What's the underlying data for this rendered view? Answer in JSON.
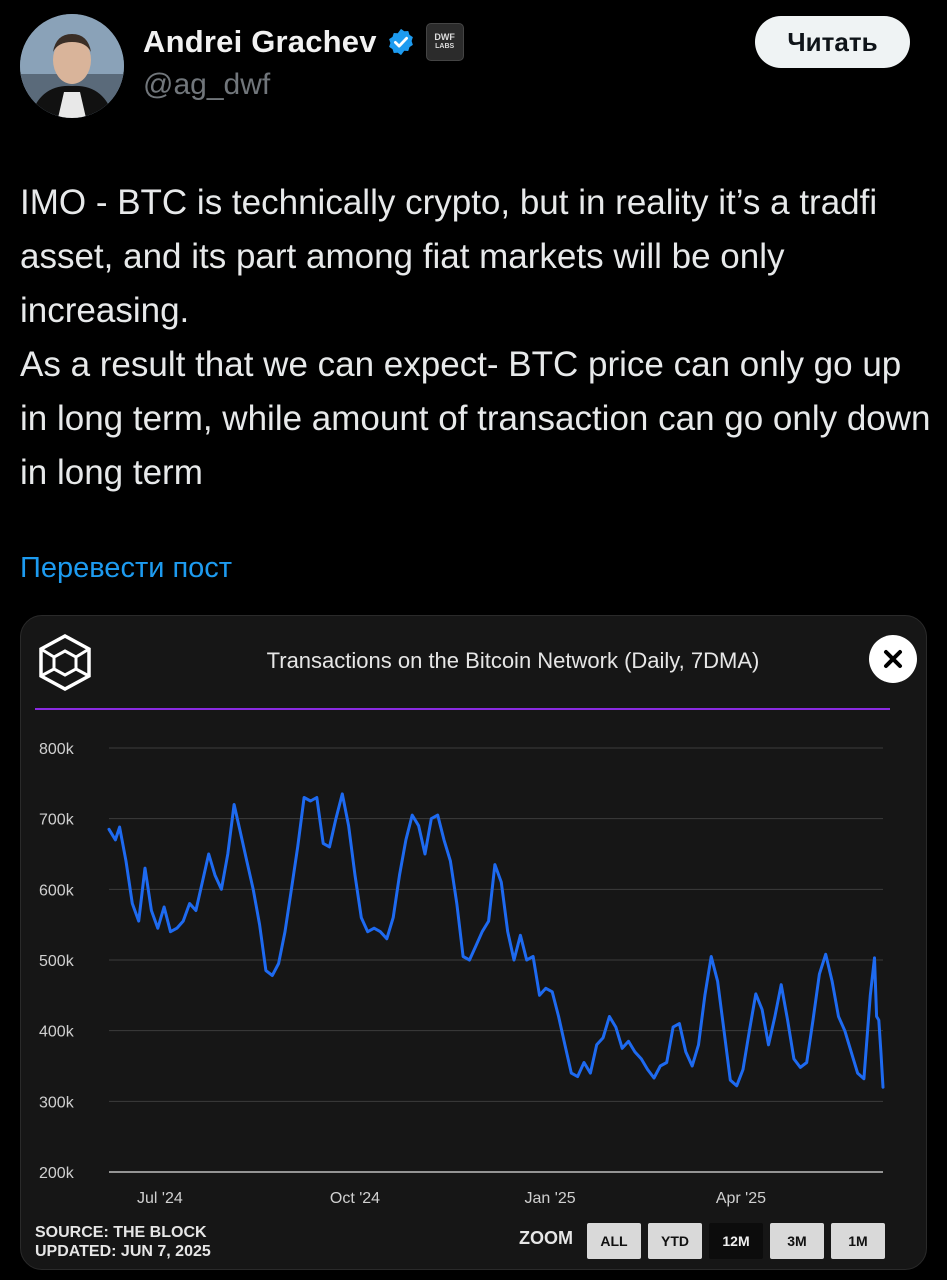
{
  "author": {
    "name": "Andrei Grachev",
    "handle": "@ag_dwf",
    "badge_line1": "DWF",
    "badge_line2": "LABS",
    "verified_icon": "verified-badge-icon"
  },
  "actions": {
    "read_label": "Читать",
    "translate_label": "Перевести пост"
  },
  "tweet": {
    "paragraph1": "IMO - BTC is technically crypto, but in reality it’s a tradfi asset, and its part among fiat markets will be only increasing.",
    "paragraph2": "As a result that we can expect- BTC price can only go up in long term, while amount of transaction can go only down in long term"
  },
  "chart_card": {
    "source_line1": "SOURCE: THE BLOCK",
    "source_line2": "UPDATED: JUN 7, 2025",
    "zoom_label": "ZOOM",
    "zoom_options": [
      "ALL",
      "YTD",
      "12M",
      "3M",
      "1M"
    ],
    "zoom_active": "12M",
    "colors": {
      "line": "#1e6af0",
      "divider": "#8a2be2",
      "background": "#161616"
    }
  },
  "chart_data": {
    "type": "line",
    "title": "Transactions on the Bitcoin Network (Daily, 7DMA)",
    "xlabel": "",
    "ylabel": "",
    "ylim": [
      200000,
      800000
    ],
    "yticks": [
      200000,
      300000,
      400000,
      500000,
      600000,
      700000,
      800000
    ],
    "ytick_labels": [
      "200k",
      "300k",
      "400k",
      "500k",
      "600k",
      "700k",
      "800k"
    ],
    "xtick_labels": [
      "Jul '24",
      "Oct '24",
      "Jan '25",
      "Apr '25"
    ],
    "xtick_dates": [
      "2024-07-01",
      "2024-10-01",
      "2025-01-01",
      "2025-04-01"
    ],
    "x_start": "2024-06-07",
    "x_end": "2025-06-07",
    "grid": true,
    "series": [
      {
        "color": "#1e6af0",
        "points": [
          [
            "2024-06-07",
            685000
          ],
          [
            "2024-06-10",
            670000
          ],
          [
            "2024-06-12",
            688000
          ],
          [
            "2024-06-15",
            640000
          ],
          [
            "2024-06-18",
            580000
          ],
          [
            "2024-06-21",
            555000
          ],
          [
            "2024-06-24",
            630000
          ],
          [
            "2024-06-27",
            570000
          ],
          [
            "2024-06-30",
            545000
          ],
          [
            "2024-07-03",
            575000
          ],
          [
            "2024-07-06",
            540000
          ],
          [
            "2024-07-09",
            545000
          ],
          [
            "2024-07-12",
            555000
          ],
          [
            "2024-07-15",
            580000
          ],
          [
            "2024-07-18",
            570000
          ],
          [
            "2024-07-21",
            610000
          ],
          [
            "2024-07-24",
            650000
          ],
          [
            "2024-07-27",
            620000
          ],
          [
            "2024-07-30",
            600000
          ],
          [
            "2024-08-02",
            650000
          ],
          [
            "2024-08-05",
            720000
          ],
          [
            "2024-08-08",
            680000
          ],
          [
            "2024-08-11",
            640000
          ],
          [
            "2024-08-14",
            600000
          ],
          [
            "2024-08-17",
            550000
          ],
          [
            "2024-08-20",
            485000
          ],
          [
            "2024-08-23",
            478000
          ],
          [
            "2024-08-26",
            495000
          ],
          [
            "2024-08-29",
            540000
          ],
          [
            "2024-09-01",
            600000
          ],
          [
            "2024-09-04",
            660000
          ],
          [
            "2024-09-07",
            730000
          ],
          [
            "2024-09-10",
            725000
          ],
          [
            "2024-09-13",
            730000
          ],
          [
            "2024-09-16",
            665000
          ],
          [
            "2024-09-19",
            660000
          ],
          [
            "2024-09-22",
            700000
          ],
          [
            "2024-09-25",
            735000
          ],
          [
            "2024-09-28",
            690000
          ],
          [
            "2024-10-01",
            620000
          ],
          [
            "2024-10-04",
            560000
          ],
          [
            "2024-10-07",
            540000
          ],
          [
            "2024-10-10",
            545000
          ],
          [
            "2024-10-13",
            540000
          ],
          [
            "2024-10-16",
            530000
          ],
          [
            "2024-10-19",
            560000
          ],
          [
            "2024-10-22",
            620000
          ],
          [
            "2024-10-25",
            670000
          ],
          [
            "2024-10-28",
            705000
          ],
          [
            "2024-10-31",
            690000
          ],
          [
            "2024-11-03",
            650000
          ],
          [
            "2024-11-06",
            700000
          ],
          [
            "2024-11-09",
            705000
          ],
          [
            "2024-11-12",
            670000
          ],
          [
            "2024-11-15",
            640000
          ],
          [
            "2024-11-18",
            580000
          ],
          [
            "2024-11-21",
            505000
          ],
          [
            "2024-11-24",
            500000
          ],
          [
            "2024-11-27",
            520000
          ],
          [
            "2024-11-30",
            540000
          ],
          [
            "2024-12-03",
            555000
          ],
          [
            "2024-12-06",
            635000
          ],
          [
            "2024-12-09",
            610000
          ],
          [
            "2024-12-12",
            540000
          ],
          [
            "2024-12-15",
            500000
          ],
          [
            "2024-12-18",
            535000
          ],
          [
            "2024-12-21",
            500000
          ],
          [
            "2024-12-24",
            505000
          ],
          [
            "2024-12-27",
            450000
          ],
          [
            "2024-12-30",
            460000
          ],
          [
            "2025-01-02",
            455000
          ],
          [
            "2025-01-05",
            420000
          ],
          [
            "2025-01-08",
            380000
          ],
          [
            "2025-01-11",
            340000
          ],
          [
            "2025-01-14",
            335000
          ],
          [
            "2025-01-17",
            355000
          ],
          [
            "2025-01-20",
            340000
          ],
          [
            "2025-01-23",
            380000
          ],
          [
            "2025-01-26",
            390000
          ],
          [
            "2025-01-29",
            420000
          ],
          [
            "2025-02-01",
            405000
          ],
          [
            "2025-02-04",
            375000
          ],
          [
            "2025-02-07",
            385000
          ],
          [
            "2025-02-10",
            370000
          ],
          [
            "2025-02-13",
            360000
          ],
          [
            "2025-02-16",
            345000
          ],
          [
            "2025-02-19",
            333000
          ],
          [
            "2025-02-22",
            350000
          ],
          [
            "2025-02-25",
            355000
          ],
          [
            "2025-02-28",
            405000
          ],
          [
            "2025-03-03",
            410000
          ],
          [
            "2025-03-06",
            370000
          ],
          [
            "2025-03-09",
            350000
          ],
          [
            "2025-03-12",
            380000
          ],
          [
            "2025-03-15",
            450000
          ],
          [
            "2025-03-18",
            505000
          ],
          [
            "2025-03-21",
            470000
          ],
          [
            "2025-03-24",
            400000
          ],
          [
            "2025-03-27",
            330000
          ],
          [
            "2025-03-30",
            322000
          ],
          [
            "2025-04-02",
            345000
          ],
          [
            "2025-04-05",
            400000
          ],
          [
            "2025-04-08",
            452000
          ],
          [
            "2025-04-11",
            430000
          ],
          [
            "2025-04-14",
            380000
          ],
          [
            "2025-04-17",
            420000
          ],
          [
            "2025-04-20",
            465000
          ],
          [
            "2025-04-23",
            415000
          ],
          [
            "2025-04-26",
            360000
          ],
          [
            "2025-04-29",
            348000
          ],
          [
            "2025-05-02",
            355000
          ],
          [
            "2025-05-05",
            415000
          ],
          [
            "2025-05-08",
            480000
          ],
          [
            "2025-05-11",
            508000
          ],
          [
            "2025-05-14",
            470000
          ],
          [
            "2025-05-17",
            420000
          ],
          [
            "2025-05-20",
            400000
          ],
          [
            "2025-05-23",
            370000
          ],
          [
            "2025-05-26",
            340000
          ],
          [
            "2025-05-29",
            332000
          ],
          [
            "2025-06-01",
            450000
          ],
          [
            "2025-06-03",
            503000
          ],
          [
            "2025-06-04",
            420000
          ],
          [
            "2025-06-05",
            415000
          ],
          [
            "2025-06-06",
            370000
          ],
          [
            "2025-06-07",
            320000
          ]
        ]
      }
    ]
  }
}
